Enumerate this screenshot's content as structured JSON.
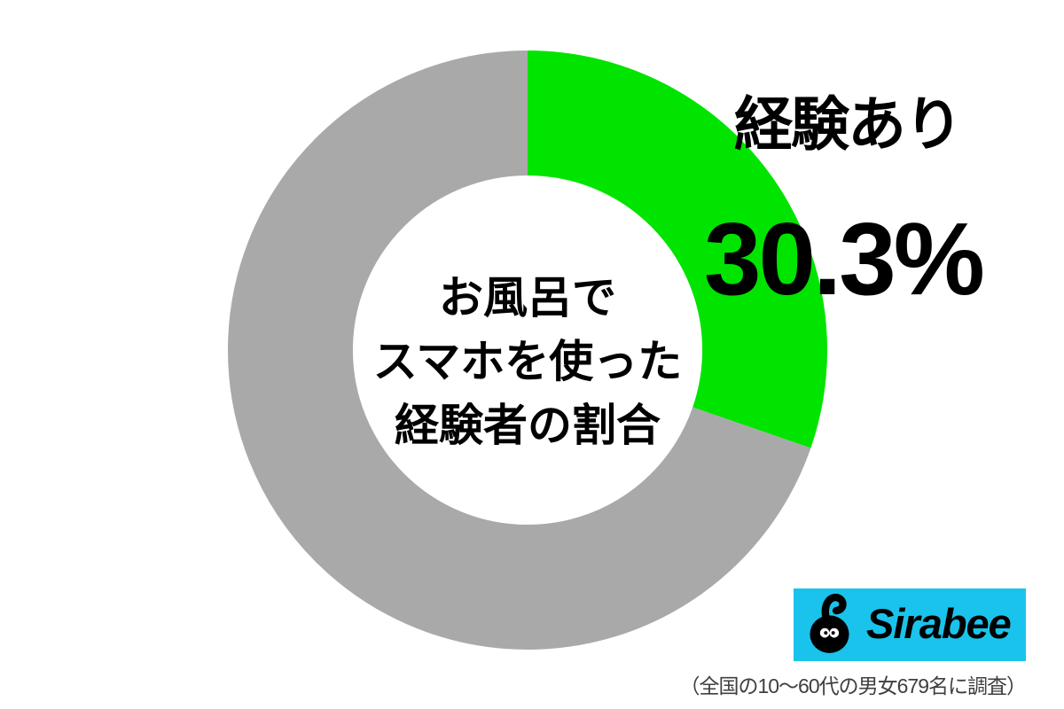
{
  "chart_data": {
    "type": "pie",
    "subtype": "donut",
    "title": "お風呂でスマホを使った経験者の割合",
    "center_label_lines": [
      "お風呂で",
      "スマホを使った",
      "経験者の割合"
    ],
    "slices": [
      {
        "label": "経験あり",
        "value": 30.3,
        "color": "#00e400"
      },
      {
        "label": "",
        "value": 69.7,
        "color": "#a9a9a9"
      }
    ],
    "hole_ratio": 0.583,
    "start_angle_deg": 0,
    "direction": "clockwise",
    "legend": "none",
    "annotation": {
      "label": "経験あり",
      "value_text": "30.3%"
    }
  },
  "callout": {
    "label": "経験あり",
    "value_text": "30.3%"
  },
  "footer": {
    "logo_text": "Sirabee",
    "logo_bg": "#1ac3eb",
    "caption": "（全国の10〜60代の男女679名に調査）"
  },
  "colors": {
    "experienced_green": "#00e400",
    "rest_gray": "#a9a9a9",
    "logo_cyan": "#1ac3eb",
    "text_black": "#000000",
    "caption_gray": "#3f3f3f",
    "background": "#ffffff"
  }
}
